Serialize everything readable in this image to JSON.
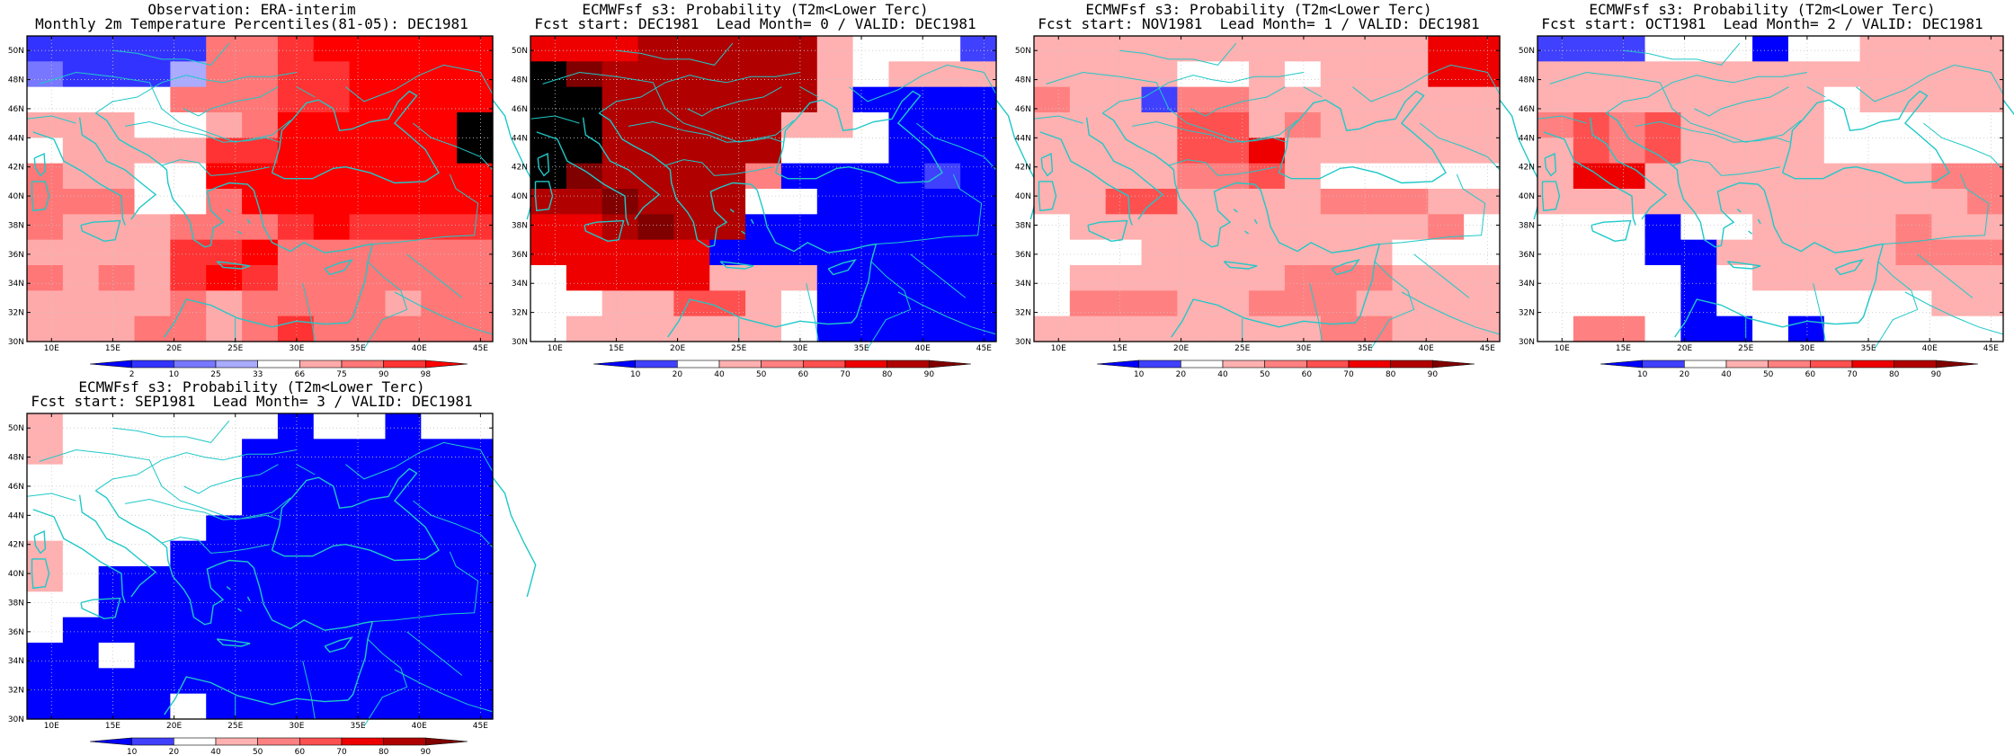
{
  "axes": {
    "lon_ticks": [
      "10E",
      "15E",
      "20E",
      "25E",
      "30E",
      "35E",
      "40E",
      "45E"
    ],
    "lat_ticks": [
      "30N",
      "32N",
      "34N",
      "36N",
      "38N",
      "40N",
      "42N",
      "44N",
      "46N",
      "48N",
      "50N"
    ],
    "lon_range": [
      8,
      46
    ],
    "lat_range": [
      30,
      51
    ]
  },
  "colors": {
    "coast": "#20c8c8",
    "grid": "#c8c8c8",
    "frame": "#000000"
  },
  "chart_data": [
    {
      "type": "heatmap",
      "title_line1": "Observation: ERA-interim",
      "title_line2": "Monthly 2m Temperature Percentiles(81-05): DEC1981",
      "colorbar": {
        "labels": [
          "2",
          "10",
          "25",
          "33",
          "66",
          "75",
          "90",
          "98"
        ],
        "colors": [
          "#0000ff",
          "#3333ff",
          "#7777ff",
          "#aaaaff",
          "#ffffff",
          "#ffaaaa",
          "#ff7777",
          "#ff3333",
          "#ff0000"
        ]
      },
      "grid_rows_top_to_bottom": [
        "1111166788888",
        "2111366778888",
        "4444666778888",
        "5554456888889",
        "4555577888889",
        "6554488888888",
        "6664468888888",
        "6555666787777",
        "5555778666666",
        "6565787666666",
        "5555656666566",
        "5556656766666"
      ]
    },
    {
      "type": "heatmap",
      "title_line1": "ECMWFsf s3: Probability (T2m<Lower Terc)",
      "title_line2": "Fcst start: DEC1981  Lead Month= 0 / VALID: DEC1981",
      "colorbar": {
        "labels": [
          "10",
          "20",
          "40",
          "50",
          "60",
          "70",
          "80",
          "90"
        ],
        "colors": [
          "#0000ff",
          "#4040ff",
          "#ffffff",
          "#ffb0b0",
          "#ff8080",
          "#ff5050",
          "#ee0000",
          "#b00000",
          "#800000"
        ]
      },
      "grid_rows_top_to_bottom": [
        "6667777732221",
        "9877777732333",
        "9977777730000",
        "9977777332000",
        "9977777222000",
        "9877774000010",
        "7787772200000",
        "6678770000000",
        "6666600000000",
        "2666633300000",
        "2233553200000",
        "2333333200000"
      ]
    },
    {
      "type": "heatmap",
      "title_line1": "ECMWFsf s3: Probability (T2m<Lower Terc)",
      "title_line2": "Fcst start: NOV1981  Lead Month= 1 / VALID: DEC1981",
      "colorbar": {
        "labels": [
          "10",
          "20",
          "40",
          "50",
          "60",
          "70",
          "80",
          "90"
        ],
        "colors": [
          "#0000ff",
          "#4040ff",
          "#ffffff",
          "#ffb0b0",
          "#ff8080",
          "#ff5050",
          "#ee0000",
          "#b00000",
          "#800000"
        ]
      },
      "grid_rows_top_to_bottom": [
        "3333333333366",
        "3333223233366",
        "4331443333333",
        "3333553433333",
        "3333556333333",
        "3333445322222",
        "3355333344433",
        "2333333333342",
        "2223333333222",
        "2333333444333",
        "2444334443333",
        "3333333344333"
      ]
    },
    {
      "type": "heatmap",
      "title_line1": "ECMWFsf s3: Probability (T2m<Lower Terc)",
      "title_line2": "Fcst start: OCT1981  Lead Month= 2 / VALID: DEC1981",
      "colorbar": {
        "labels": [
          "10",
          "20",
          "40",
          "50",
          "60",
          "70",
          "80",
          "90"
        ],
        "colors": [
          "#0000ff",
          "#4040ff",
          "#ffffff",
          "#ffb0b0",
          "#ff8080",
          "#ff5050",
          "#ee0000",
          "#b00000",
          "#800000"
        ]
      },
      "grid_rows_top_to_bottom": [
        "1112220223333",
        "3333333333333",
        "3333333323333",
        "4545333322222",
        "3545333322222",
        "3663333333344",
        "3333333333334",
        "2220223333433",
        "2220033333444",
        "2222023333333",
        "2222022222233",
        "2442002022222"
      ]
    },
    {
      "type": "heatmap",
      "title_line1": "ECMWFsf s3: Probability (T2m<Lower Terc)",
      "title_line2": "Fcst start: SEP1981  Lead Month= 3 / VALID: DEC1981",
      "colorbar": {
        "labels": [
          "10",
          "20",
          "40",
          "50",
          "60",
          "70",
          "80",
          "90"
        ],
        "colors": [
          "#0000ff",
          "#4040ff",
          "#ffffff",
          "#ffb0b0",
          "#ff8080",
          "#ff5050",
          "#ee0000",
          "#b00000",
          "#800000"
        ]
      },
      "grid_rows_top_to_bottom": [
        "3222222022022",
        "3222220000000",
        "2222220000000",
        "2222220000000",
        "2222200000000",
        "3222000000000",
        "3200000000000",
        "2200000000000",
        "2000000000000",
        "0020000000000",
        "0000000000000",
        "0000200000000"
      ]
    }
  ]
}
